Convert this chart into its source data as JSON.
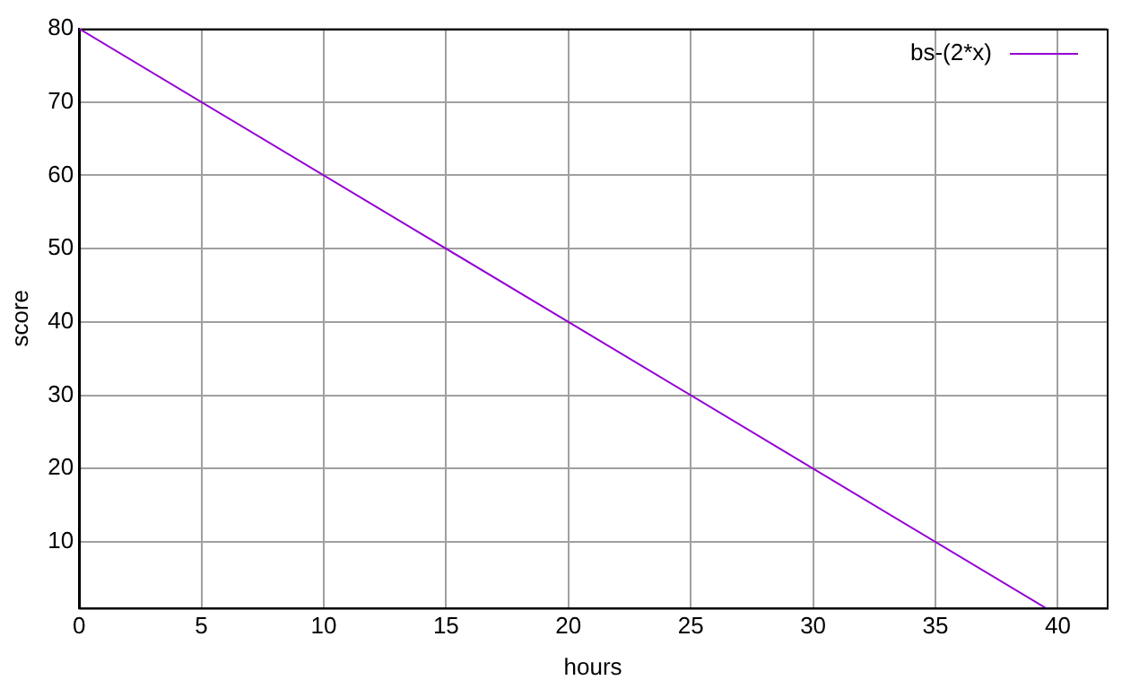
{
  "chart_data": {
    "type": "line",
    "xlabel": "hours",
    "ylabel": "score",
    "series": [
      {
        "name": "bs-(2*x)",
        "color": "#9400d3",
        "x": [
          0,
          39.5
        ],
        "values": [
          80,
          1
        ]
      }
    ],
    "xlim": [
      0,
      42
    ],
    "xticks": [
      0,
      5,
      10,
      15,
      20,
      25,
      30,
      35,
      40
    ],
    "ylim": [
      1,
      80
    ],
    "yticks": [
      10,
      20,
      30,
      40,
      50,
      60,
      70,
      80
    ],
    "grid": true,
    "legend": "top right",
    "marker": "none",
    "line_style": "solid"
  }
}
